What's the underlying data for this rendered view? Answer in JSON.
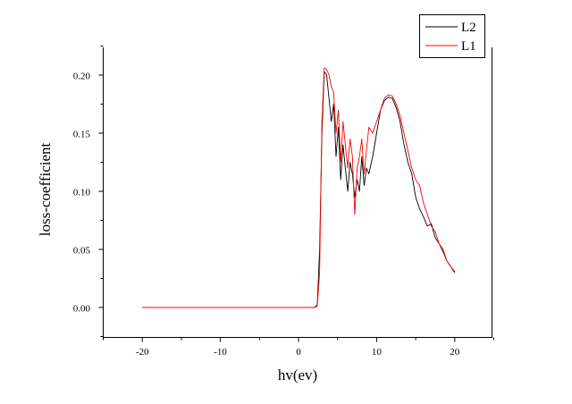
{
  "chart_data": {
    "type": "line",
    "title": "",
    "xlabel": "hv(ev)",
    "ylabel": "loss-coefficient",
    "xlim": [
      -25,
      25
    ],
    "ylim": [
      -0.025,
      0.225
    ],
    "xticks": [
      -20,
      -10,
      0,
      10,
      20
    ],
    "xtick_labels": [
      "-20",
      "-10",
      "0",
      "10",
      "20"
    ],
    "yticks": [
      0.0,
      0.05,
      0.1,
      0.15,
      0.2
    ],
    "ytick_labels": [
      "0.00",
      "0.05",
      "0.10",
      "0.15",
      "0.20"
    ],
    "grid": false,
    "legend_position": "top-right",
    "series": [
      {
        "name": "L2",
        "color": "#000000",
        "x": [
          -20,
          -10,
          0,
          2.0,
          2.4,
          2.7,
          3.0,
          3.3,
          3.6,
          3.9,
          4.2,
          4.5,
          4.8,
          5.1,
          5.4,
          5.7,
          6.0,
          6.3,
          6.6,
          6.9,
          7.2,
          7.5,
          7.8,
          8.1,
          8.4,
          8.7,
          9.0,
          9.5,
          10.0,
          10.5,
          11.0,
          11.5,
          12.0,
          12.5,
          13.0,
          13.5,
          14.0,
          14.5,
          15.0,
          15.5,
          16.0,
          16.5,
          17.0,
          17.5,
          18.0,
          18.5,
          19.0,
          19.5,
          20.0
        ],
        "y": [
          0.0,
          0.0,
          0.0,
          0.0,
          0.002,
          0.05,
          0.15,
          0.203,
          0.2,
          0.18,
          0.16,
          0.175,
          0.13,
          0.155,
          0.11,
          0.14,
          0.12,
          0.1,
          0.125,
          0.115,
          0.095,
          0.11,
          0.1,
          0.13,
          0.105,
          0.12,
          0.115,
          0.13,
          0.15,
          0.17,
          0.178,
          0.181,
          0.18,
          0.172,
          0.16,
          0.14,
          0.125,
          0.115,
          0.095,
          0.085,
          0.078,
          0.07,
          0.072,
          0.06,
          0.055,
          0.048,
          0.04,
          0.035,
          0.03
        ]
      },
      {
        "name": "L1",
        "color": "#ff0000",
        "x": [
          -20,
          -10,
          0,
          2.0,
          2.4,
          2.7,
          3.0,
          3.3,
          3.6,
          3.9,
          4.2,
          4.5,
          4.8,
          5.1,
          5.4,
          5.7,
          6.0,
          6.3,
          6.6,
          6.9,
          7.2,
          7.5,
          7.8,
          8.1,
          8.4,
          8.7,
          9.0,
          9.5,
          10.0,
          10.5,
          11.0,
          11.5,
          12.0,
          12.5,
          13.0,
          13.5,
          14.0,
          14.5,
          15.0,
          15.5,
          16.0,
          16.5,
          17.0,
          17.5,
          18.0,
          18.5,
          19.0,
          19.5,
          20.0
        ],
        "y": [
          0.0,
          0.0,
          0.0,
          0.0,
          0.001,
          0.03,
          0.16,
          0.206,
          0.205,
          0.2,
          0.19,
          0.185,
          0.15,
          0.17,
          0.125,
          0.16,
          0.14,
          0.12,
          0.145,
          0.13,
          0.08,
          0.12,
          0.13,
          0.145,
          0.115,
          0.135,
          0.155,
          0.15,
          0.16,
          0.17,
          0.18,
          0.183,
          0.182,
          0.175,
          0.165,
          0.15,
          0.135,
          0.12,
          0.11,
          0.105,
          0.09,
          0.08,
          0.07,
          0.065,
          0.055,
          0.05,
          0.04,
          0.035,
          0.031
        ]
      }
    ]
  }
}
